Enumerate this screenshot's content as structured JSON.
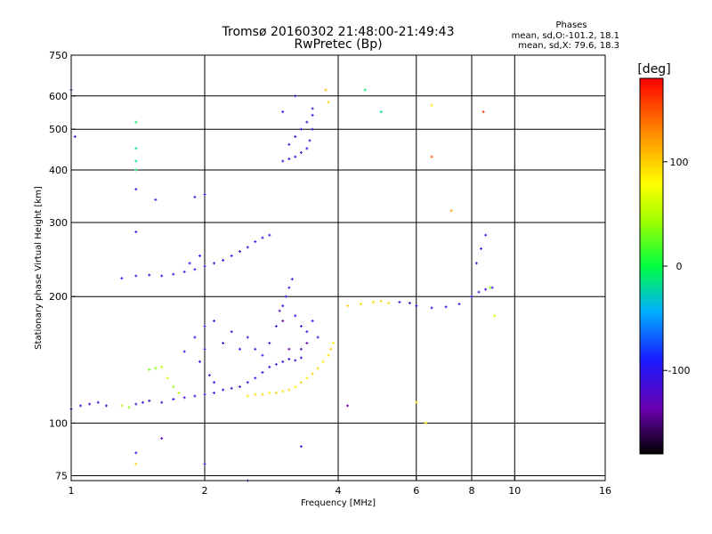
{
  "chart_data": {
    "type": "scatter",
    "title": "Tromsø 20160302 21:48:00-21:49:43",
    "subtitle": "RwPretec (Bp)",
    "xlabel": "Frequency [MHz]",
    "ylabel": "Stationary phase Virtual Height [km]",
    "x_scale": "log",
    "y_scale": "log",
    "xlim": [
      1,
      16
    ],
    "ylim": [
      73,
      750
    ],
    "x_ticks": [
      1,
      2,
      4,
      6,
      8,
      10,
      16
    ],
    "x_tick_labels": [
      "1",
      "2",
      "4",
      "6",
      "8",
      "10",
      "16"
    ],
    "y_ticks": [
      75,
      100,
      200,
      300,
      400,
      500,
      600,
      750
    ],
    "y_tick_labels": [
      "75",
      "100",
      "200",
      "300",
      "400",
      "500",
      "600",
      "750"
    ],
    "grid": true,
    "stats": {
      "header": "Phases",
      "line_o": "mean, sd,O:-101.2, 18.1",
      "line_x": "mean, sd,X: 79.6, 18.3"
    },
    "colorbar": {
      "label": "[deg]",
      "range": [
        -180,
        180
      ],
      "ticks": [
        100,
        0,
        -100
      ],
      "tick_labels": [
        "100",
        "0",
        "-100"
      ]
    },
    "series": [
      {
        "values": [
          [
            1.0,
            108,
            -110
          ],
          [
            1.05,
            110,
            -105
          ],
          [
            1.1,
            111,
            -115
          ],
          [
            1.15,
            112,
            -100
          ],
          [
            1.2,
            110,
            -108
          ],
          [
            1.3,
            110,
            50
          ],
          [
            1.35,
            109,
            40
          ],
          [
            1.4,
            111,
            -110
          ],
          [
            1.45,
            112,
            -100
          ],
          [
            1.5,
            113,
            -105
          ],
          [
            1.6,
            112,
            -110
          ],
          [
            1.7,
            114,
            -100
          ],
          [
            1.8,
            115,
            -110
          ],
          [
            1.9,
            116,
            -105
          ],
          [
            2.0,
            117,
            -100
          ],
          [
            2.1,
            118,
            -110
          ],
          [
            2.2,
            120,
            -100
          ],
          [
            2.3,
            121,
            -105
          ],
          [
            2.4,
            122,
            -110
          ],
          [
            2.5,
            125,
            -100
          ],
          [
            2.6,
            128,
            -95
          ],
          [
            2.7,
            132,
            -105
          ],
          [
            2.8,
            136,
            -100
          ],
          [
            2.9,
            138,
            -110
          ],
          [
            3.0,
            140,
            -100
          ],
          [
            3.1,
            142,
            -105
          ],
          [
            3.2,
            141,
            -110
          ],
          [
            3.3,
            143,
            -100
          ]
        ]
      },
      {
        "values": [
          [
            2.5,
            116,
            90
          ],
          [
            2.6,
            117,
            95
          ],
          [
            2.7,
            117,
            100
          ],
          [
            2.8,
            118,
            85
          ],
          [
            2.9,
            118,
            95
          ],
          [
            3.0,
            119,
            90
          ],
          [
            3.1,
            120,
            100
          ],
          [
            3.2,
            122,
            85
          ],
          [
            3.3,
            125,
            95
          ],
          [
            3.4,
            128,
            90
          ],
          [
            3.5,
            131,
            100
          ],
          [
            3.6,
            135,
            95
          ],
          [
            3.7,
            140,
            85
          ],
          [
            3.8,
            145,
            90
          ],
          [
            3.85,
            150,
            100
          ],
          [
            3.9,
            155,
            85
          ]
        ]
      },
      {
        "values": [
          [
            1.5,
            134,
            30
          ],
          [
            1.55,
            135,
            40
          ],
          [
            1.6,
            136,
            50
          ],
          [
            1.65,
            128,
            60
          ],
          [
            1.7,
            122,
            40
          ],
          [
            1.75,
            118,
            50
          ]
        ]
      },
      {
        "values": [
          [
            1.8,
            148,
            -110
          ],
          [
            1.9,
            160,
            -100
          ],
          [
            2.0,
            170,
            -105
          ],
          [
            2.1,
            175,
            -110
          ],
          [
            2.0,
            150,
            -100
          ],
          [
            1.95,
            140,
            -105
          ],
          [
            2.05,
            130,
            -110
          ],
          [
            2.1,
            125,
            -100
          ],
          [
            2.2,
            155,
            -110
          ],
          [
            2.3,
            165,
            -105
          ],
          [
            2.4,
            150,
            -100
          ],
          [
            2.5,
            160,
            -110
          ],
          [
            2.6,
            150,
            -105
          ],
          [
            2.7,
            145,
            -100
          ],
          [
            2.8,
            155,
            -110
          ],
          [
            2.9,
            170,
            -105
          ],
          [
            3.0,
            190,
            -110
          ],
          [
            3.05,
            200,
            -100
          ],
          [
            3.1,
            210,
            -105
          ],
          [
            3.15,
            220,
            -110
          ],
          [
            3.2,
            180,
            -100
          ],
          [
            3.3,
            170,
            -105
          ],
          [
            3.4,
            165,
            -110
          ],
          [
            3.5,
            175,
            -100
          ],
          [
            3.6,
            160,
            -105
          ],
          [
            3.1,
            150,
            -130
          ],
          [
            3.3,
            150,
            -120
          ],
          [
            3.4,
            155,
            -125
          ],
          [
            2.95,
            185,
            -120
          ],
          [
            3.0,
            175,
            -130
          ]
        ]
      },
      {
        "values": [
          [
            1.3,
            221,
            -100
          ],
          [
            1.4,
            224,
            -105
          ],
          [
            1.5,
            225,
            -110
          ],
          [
            1.6,
            224,
            -100
          ],
          [
            1.7,
            226,
            -105
          ],
          [
            1.8,
            229,
            -110
          ],
          [
            1.9,
            232,
            -100
          ],
          [
            2.0,
            236,
            -105
          ],
          [
            2.1,
            240,
            -110
          ],
          [
            2.2,
            244,
            -100
          ],
          [
            2.3,
            250,
            -105
          ],
          [
            2.4,
            256,
            -110
          ],
          [
            2.5,
            262,
            -100
          ],
          [
            2.6,
            270,
            -105
          ],
          [
            2.7,
            276,
            -110
          ],
          [
            2.8,
            280,
            -100
          ],
          [
            1.85,
            240,
            -90
          ],
          [
            1.95,
            250,
            -95
          ]
        ]
      },
      {
        "values": [
          [
            3.0,
            420,
            -110
          ],
          [
            3.1,
            425,
            -100
          ],
          [
            3.2,
            430,
            -105
          ],
          [
            3.3,
            440,
            -110
          ],
          [
            3.4,
            450,
            -100
          ],
          [
            3.45,
            470,
            -105
          ],
          [
            3.5,
            500,
            -110
          ],
          [
            3.5,
            540,
            -100
          ],
          [
            3.5,
            560,
            -105
          ],
          [
            3.4,
            520,
            -110
          ],
          [
            3.3,
            500,
            -100
          ],
          [
            3.2,
            480,
            -105
          ],
          [
            3.1,
            460,
            -110
          ],
          [
            3.0,
            550,
            -100
          ]
        ]
      },
      {
        "values": [
          [
            4.2,
            190,
            100
          ],
          [
            4.5,
            192,
            95
          ],
          [
            4.8,
            194,
            90
          ],
          [
            5.0,
            195,
            100
          ],
          [
            5.2,
            193,
            95
          ],
          [
            5.5,
            194,
            -110
          ],
          [
            5.8,
            193,
            -105
          ],
          [
            6.0,
            190,
            -100
          ],
          [
            6.5,
            188,
            -110
          ],
          [
            7.0,
            189,
            -105
          ],
          [
            7.5,
            192,
            -110
          ],
          [
            8.0,
            200,
            -100
          ],
          [
            8.3,
            205,
            -105
          ],
          [
            8.6,
            208,
            -110
          ],
          [
            8.9,
            210,
            -100
          ],
          [
            8.2,
            240,
            -110
          ],
          [
            8.4,
            260,
            -105
          ],
          [
            8.6,
            280,
            -100
          ],
          [
            8.8,
            210,
            40
          ],
          [
            9.0,
            180,
            60
          ]
        ]
      },
      {
        "values": [
          [
            1.0,
            620,
            -110
          ],
          [
            1.02,
            480,
            -100
          ],
          [
            1.4,
            520,
            -10
          ],
          [
            1.4,
            450,
            -20
          ],
          [
            1.4,
            420,
            -15
          ],
          [
            1.4,
            400,
            -12
          ],
          [
            1.4,
            360,
            -100
          ],
          [
            1.4,
            285,
            -100
          ],
          [
            1.55,
            340,
            -110
          ],
          [
            1.9,
            345,
            -100
          ],
          [
            2.0,
            350,
            -105
          ],
          [
            3.2,
            600,
            -110
          ],
          [
            3.75,
            620,
            110
          ],
          [
            3.8,
            580,
            100
          ],
          [
            4.6,
            620,
            -10
          ],
          [
            5.0,
            550,
            -20
          ],
          [
            6.5,
            570,
            90
          ],
          [
            6.5,
            430,
            150
          ],
          [
            8.5,
            550,
            160
          ],
          [
            6.3,
            100,
            90
          ],
          [
            1.4,
            85,
            -110
          ],
          [
            1.4,
            80,
            100
          ],
          [
            1.6,
            92,
            -120
          ],
          [
            2.0,
            80,
            -110
          ],
          [
            2.5,
            73,
            -120
          ],
          [
            3.3,
            88,
            -110
          ],
          [
            4.2,
            110,
            -130
          ],
          [
            6.0,
            112,
            90
          ],
          [
            7.2,
            320,
            120
          ]
        ]
      }
    ]
  }
}
